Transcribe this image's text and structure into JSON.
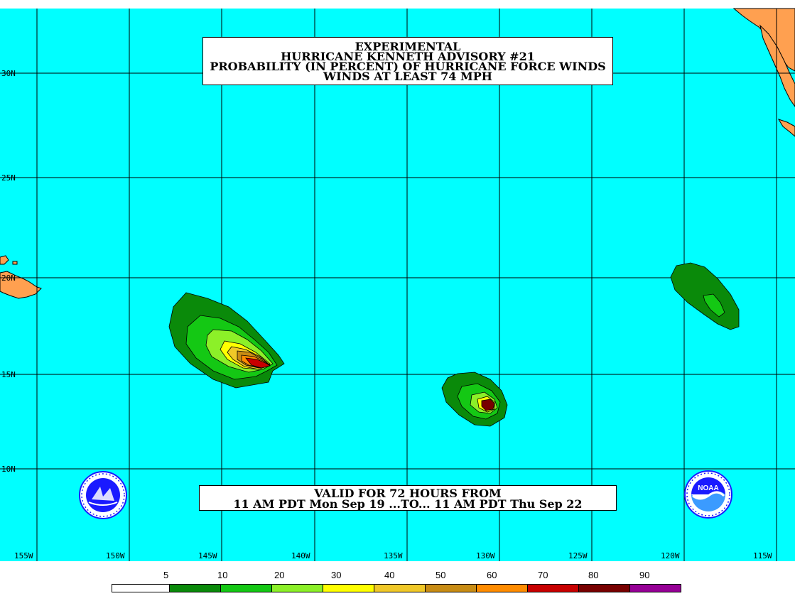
{
  "title": {
    "line1": "EXPERIMENTAL",
    "line2": "HURRICANE KENNETH ADVISORY #21",
    "line3": "PROBABILITY (IN PERCENT) OF HURRICANE FORCE WINDS",
    "line4": "WINDS AT LEAST 74 MPH"
  },
  "valid": {
    "line1": "VALID FOR 72 HOURS FROM",
    "line2": "11 AM PDT Mon Sep 19 ...TO... 11 AM PDT Thu Sep 22"
  },
  "axes": {
    "lat_labels": [
      "30N",
      "25N",
      "20N",
      "15N",
      "10N"
    ],
    "lon_labels": [
      "155W",
      "150W",
      "145W",
      "140W",
      "135W",
      "130W",
      "125W",
      "120W",
      "115W"
    ]
  },
  "legend": {
    "values": [
      "5",
      "10",
      "20",
      "30",
      "40",
      "50",
      "60",
      "70",
      "80",
      "90"
    ],
    "colors": [
      "#ffffff",
      "#0a8a0a",
      "#14c814",
      "#8cf028",
      "#ffff00",
      "#f0c828",
      "#c88c14",
      "#ff8c00",
      "#c80000",
      "#780000",
      "#960096"
    ]
  },
  "colors": {
    "ocean": "#00ffff",
    "land": "#ffa050",
    "grid": "#000000"
  },
  "logos": {
    "left": "nws-logo",
    "right": "noaa-logo",
    "noaa_text": "NOAA"
  }
}
